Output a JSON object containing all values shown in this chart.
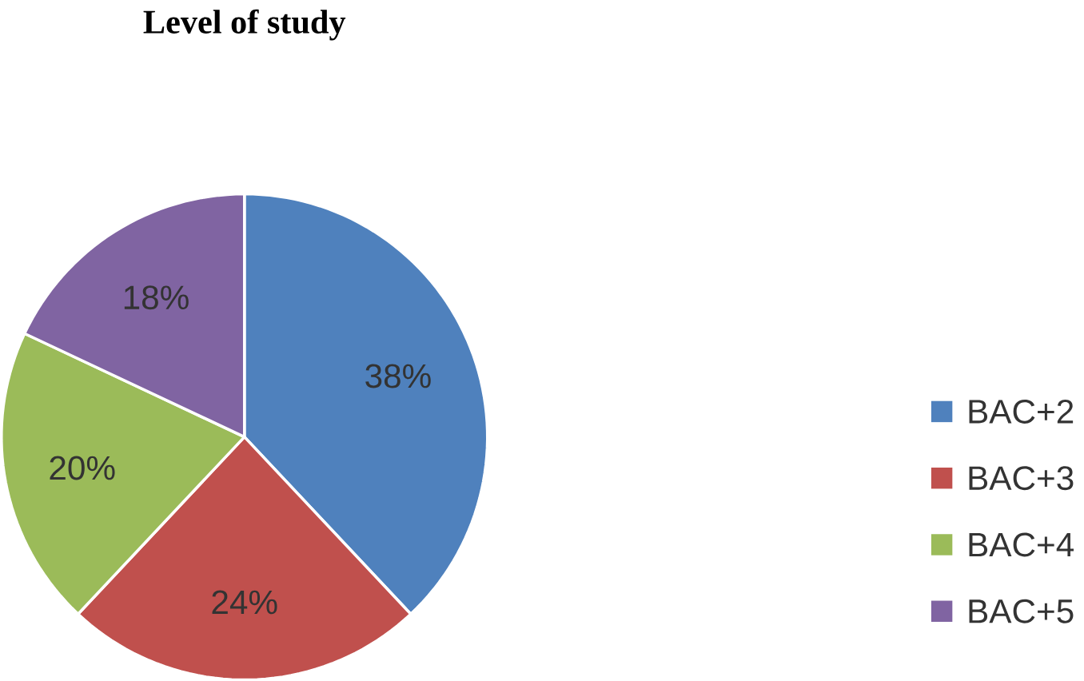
{
  "chart_data": {
    "type": "pie",
    "title": "Level of study",
    "categories": [
      "BAC+2",
      "BAC+3",
      "BAC+4",
      "BAC+5"
    ],
    "values": [
      38,
      24,
      20,
      18
    ],
    "value_labels": [
      "38%",
      "24%",
      "20%",
      "18%"
    ],
    "colors": [
      "#4f81bd",
      "#c0504d",
      "#9bbb59",
      "#8064a2"
    ],
    "legend": "right"
  }
}
